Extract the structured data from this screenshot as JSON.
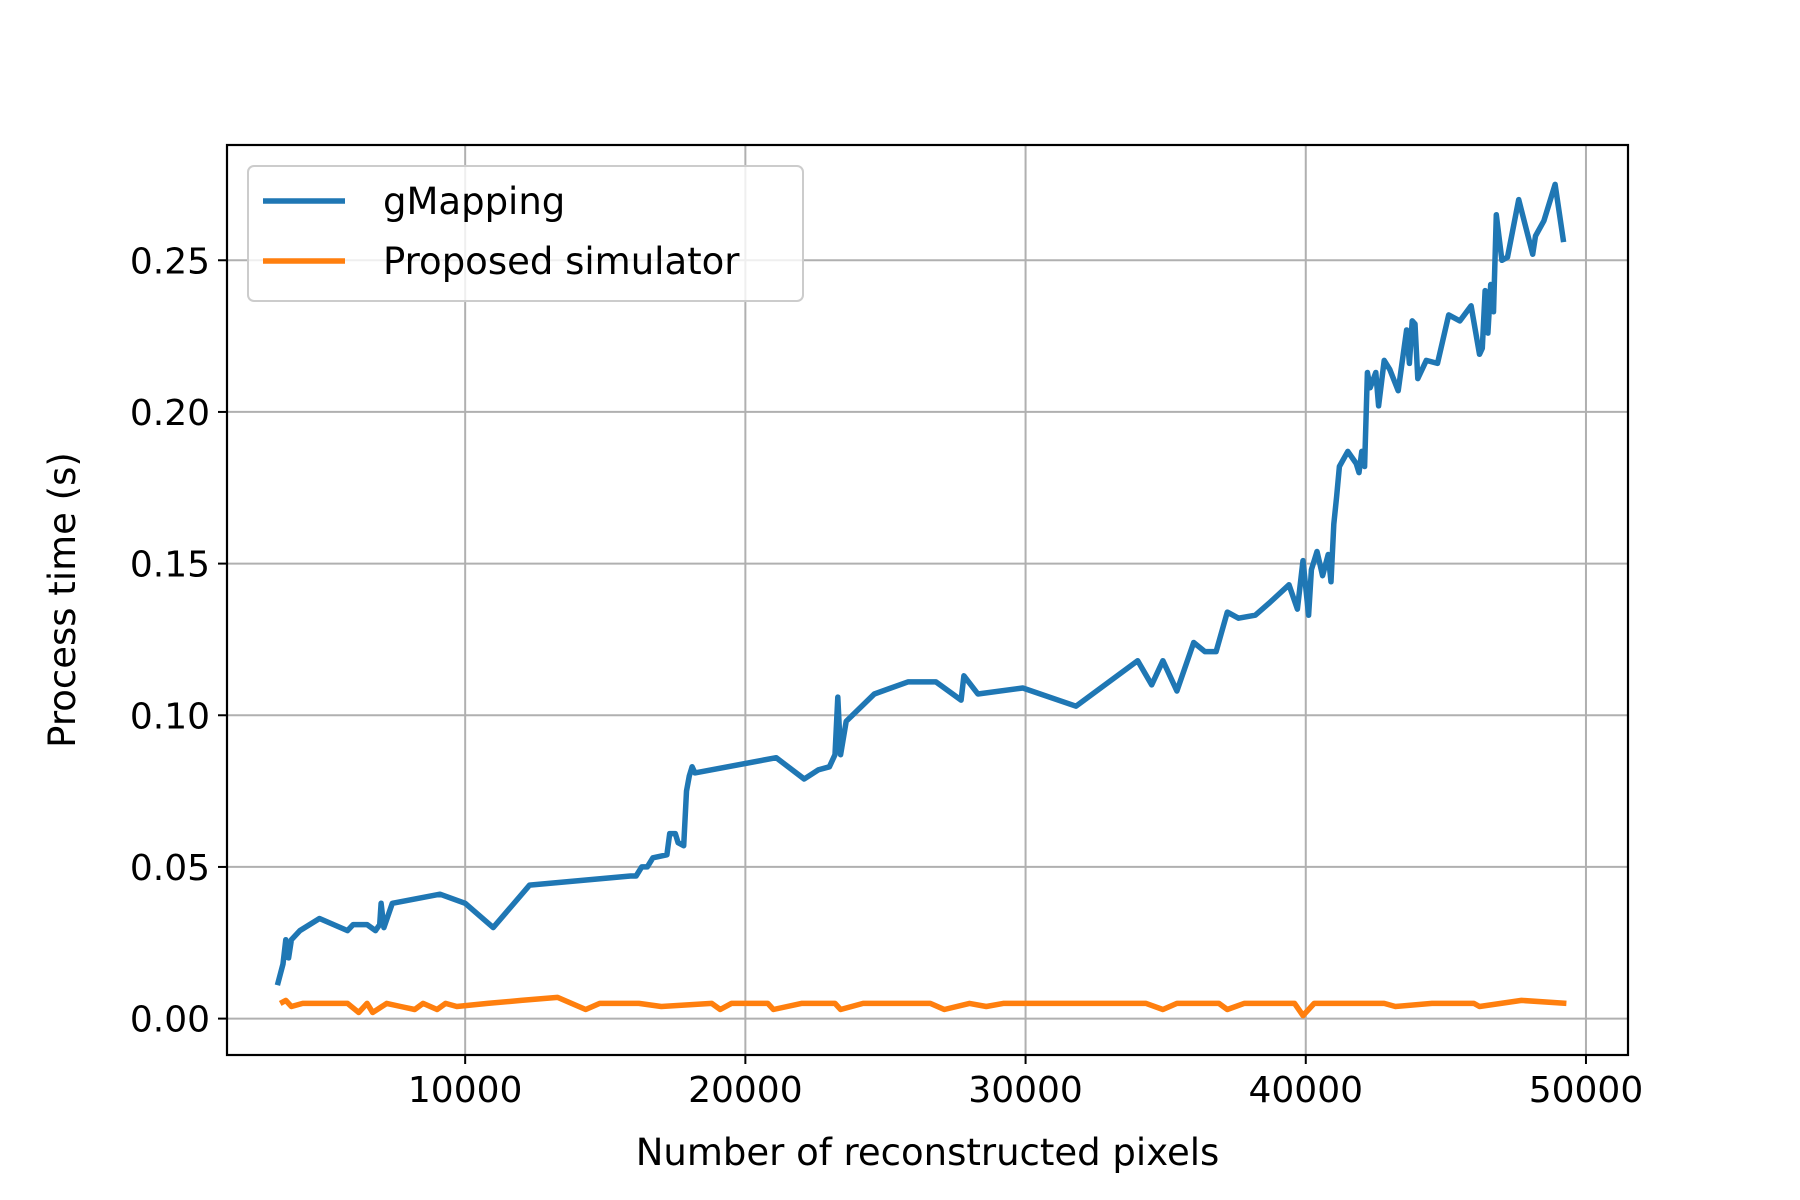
{
  "chart_data": {
    "type": "line",
    "title": "",
    "xlabel": "Number of reconstructed pixels",
    "ylabel": "Process time (s)",
    "xlim": [
      1500,
      51500
    ],
    "ylim": [
      -0.012,
      0.288
    ],
    "xticks": [
      10000,
      20000,
      30000,
      40000,
      50000
    ],
    "yticks": [
      0.0,
      0.05,
      0.1,
      0.15,
      0.2,
      0.25
    ],
    "ytick_labels": [
      "0.00",
      "0.05",
      "0.10",
      "0.15",
      "0.20",
      "0.25"
    ],
    "grid": true,
    "legend_position": "upper-left",
    "series": [
      {
        "name": "gMapping",
        "color": "#1f77b4",
        "points": [
          [
            3300,
            0.011
          ],
          [
            3500,
            0.018
          ],
          [
            3600,
            0.026
          ],
          [
            3700,
            0.02
          ],
          [
            3800,
            0.026
          ],
          [
            4100,
            0.029
          ],
          [
            4800,
            0.033
          ],
          [
            5800,
            0.029
          ],
          [
            6000,
            0.031
          ],
          [
            6500,
            0.031
          ],
          [
            6800,
            0.029
          ],
          [
            6950,
            0.031
          ],
          [
            7000,
            0.038
          ],
          [
            7100,
            0.03
          ],
          [
            7400,
            0.038
          ],
          [
            9100,
            0.041
          ],
          [
            10000,
            0.038
          ],
          [
            11000,
            0.03
          ],
          [
            12300,
            0.044
          ],
          [
            15900,
            0.047
          ],
          [
            16100,
            0.047
          ],
          [
            16300,
            0.05
          ],
          [
            16500,
            0.05
          ],
          [
            16700,
            0.053
          ],
          [
            17200,
            0.054
          ],
          [
            17300,
            0.061
          ],
          [
            17500,
            0.061
          ],
          [
            17600,
            0.058
          ],
          [
            17800,
            0.057
          ],
          [
            17900,
            0.075
          ],
          [
            18000,
            0.08
          ],
          [
            18100,
            0.083
          ],
          [
            18200,
            0.081
          ],
          [
            21100,
            0.086
          ],
          [
            22100,
            0.079
          ],
          [
            22600,
            0.082
          ],
          [
            23000,
            0.083
          ],
          [
            23200,
            0.087
          ],
          [
            23300,
            0.106
          ],
          [
            23400,
            0.087
          ],
          [
            23600,
            0.098
          ],
          [
            24600,
            0.107
          ],
          [
            25800,
            0.111
          ],
          [
            26800,
            0.111
          ],
          [
            27700,
            0.105
          ],
          [
            27800,
            0.113
          ],
          [
            28300,
            0.107
          ],
          [
            29900,
            0.109
          ],
          [
            31800,
            0.103
          ],
          [
            34000,
            0.118
          ],
          [
            34500,
            0.11
          ],
          [
            34900,
            0.118
          ],
          [
            35400,
            0.108
          ],
          [
            36000,
            0.124
          ],
          [
            36400,
            0.121
          ],
          [
            36800,
            0.121
          ],
          [
            37200,
            0.134
          ],
          [
            37600,
            0.132
          ],
          [
            38200,
            0.133
          ],
          [
            38700,
            0.137
          ],
          [
            39400,
            0.143
          ],
          [
            39700,
            0.135
          ],
          [
            39900,
            0.151
          ],
          [
            40100,
            0.133
          ],
          [
            40200,
            0.148
          ],
          [
            40400,
            0.154
          ],
          [
            40600,
            0.146
          ],
          [
            40800,
            0.153
          ],
          [
            40900,
            0.144
          ],
          [
            41000,
            0.163
          ],
          [
            41100,
            0.172
          ],
          [
            41200,
            0.182
          ],
          [
            41500,
            0.187
          ],
          [
            41800,
            0.183
          ],
          [
            41900,
            0.18
          ],
          [
            42000,
            0.187
          ],
          [
            42100,
            0.182
          ],
          [
            42200,
            0.213
          ],
          [
            42300,
            0.208
          ],
          [
            42500,
            0.213
          ],
          [
            42600,
            0.202
          ],
          [
            42800,
            0.217
          ],
          [
            43000,
            0.214
          ],
          [
            43300,
            0.207
          ],
          [
            43600,
            0.227
          ],
          [
            43700,
            0.216
          ],
          [
            43800,
            0.23
          ],
          [
            43900,
            0.229
          ],
          [
            44000,
            0.211
          ],
          [
            44300,
            0.217
          ],
          [
            44700,
            0.216
          ],
          [
            45100,
            0.232
          ],
          [
            45500,
            0.23
          ],
          [
            45900,
            0.235
          ],
          [
            46200,
            0.219
          ],
          [
            46300,
            0.221
          ],
          [
            46400,
            0.24
          ],
          [
            46500,
            0.226
          ],
          [
            46600,
            0.242
          ],
          [
            46700,
            0.233
          ],
          [
            46800,
            0.265
          ],
          [
            47000,
            0.25
          ],
          [
            47200,
            0.251
          ],
          [
            47600,
            0.27
          ],
          [
            48100,
            0.252
          ],
          [
            48200,
            0.258
          ],
          [
            48500,
            0.263
          ],
          [
            48900,
            0.275
          ],
          [
            49200,
            0.256
          ]
        ]
      },
      {
        "name": "Proposed simulator",
        "color": "#ff7f0e",
        "points": [
          [
            3400,
            0.005
          ],
          [
            3600,
            0.006
          ],
          [
            3800,
            0.004
          ],
          [
            4200,
            0.005
          ],
          [
            5000,
            0.005
          ],
          [
            5800,
            0.005
          ],
          [
            6200,
            0.002
          ],
          [
            6500,
            0.005
          ],
          [
            6700,
            0.002
          ],
          [
            7200,
            0.005
          ],
          [
            7700,
            0.004
          ],
          [
            8200,
            0.003
          ],
          [
            8500,
            0.005
          ],
          [
            9000,
            0.003
          ],
          [
            9300,
            0.005
          ],
          [
            9700,
            0.004
          ],
          [
            10800,
            0.005
          ],
          [
            12000,
            0.006
          ],
          [
            13300,
            0.007
          ],
          [
            14300,
            0.003
          ],
          [
            14800,
            0.005
          ],
          [
            16200,
            0.005
          ],
          [
            17000,
            0.004
          ],
          [
            18800,
            0.005
          ],
          [
            19100,
            0.003
          ],
          [
            19500,
            0.005
          ],
          [
            20800,
            0.005
          ],
          [
            21000,
            0.003
          ],
          [
            22000,
            0.005
          ],
          [
            23200,
            0.005
          ],
          [
            23400,
            0.003
          ],
          [
            24200,
            0.005
          ],
          [
            26600,
            0.005
          ],
          [
            27100,
            0.003
          ],
          [
            28000,
            0.005
          ],
          [
            28600,
            0.004
          ],
          [
            29200,
            0.005
          ],
          [
            31800,
            0.005
          ],
          [
            33500,
            0.005
          ],
          [
            34300,
            0.005
          ],
          [
            34900,
            0.003
          ],
          [
            35400,
            0.005
          ],
          [
            36900,
            0.005
          ],
          [
            37200,
            0.003
          ],
          [
            37800,
            0.005
          ],
          [
            38500,
            0.005
          ],
          [
            39600,
            0.005
          ],
          [
            39900,
            0.001
          ],
          [
            40300,
            0.005
          ],
          [
            41000,
            0.005
          ],
          [
            42800,
            0.005
          ],
          [
            43200,
            0.004
          ],
          [
            44500,
            0.005
          ],
          [
            46000,
            0.005
          ],
          [
            46200,
            0.004
          ],
          [
            47700,
            0.006
          ],
          [
            49300,
            0.005
          ]
        ]
      }
    ]
  }
}
